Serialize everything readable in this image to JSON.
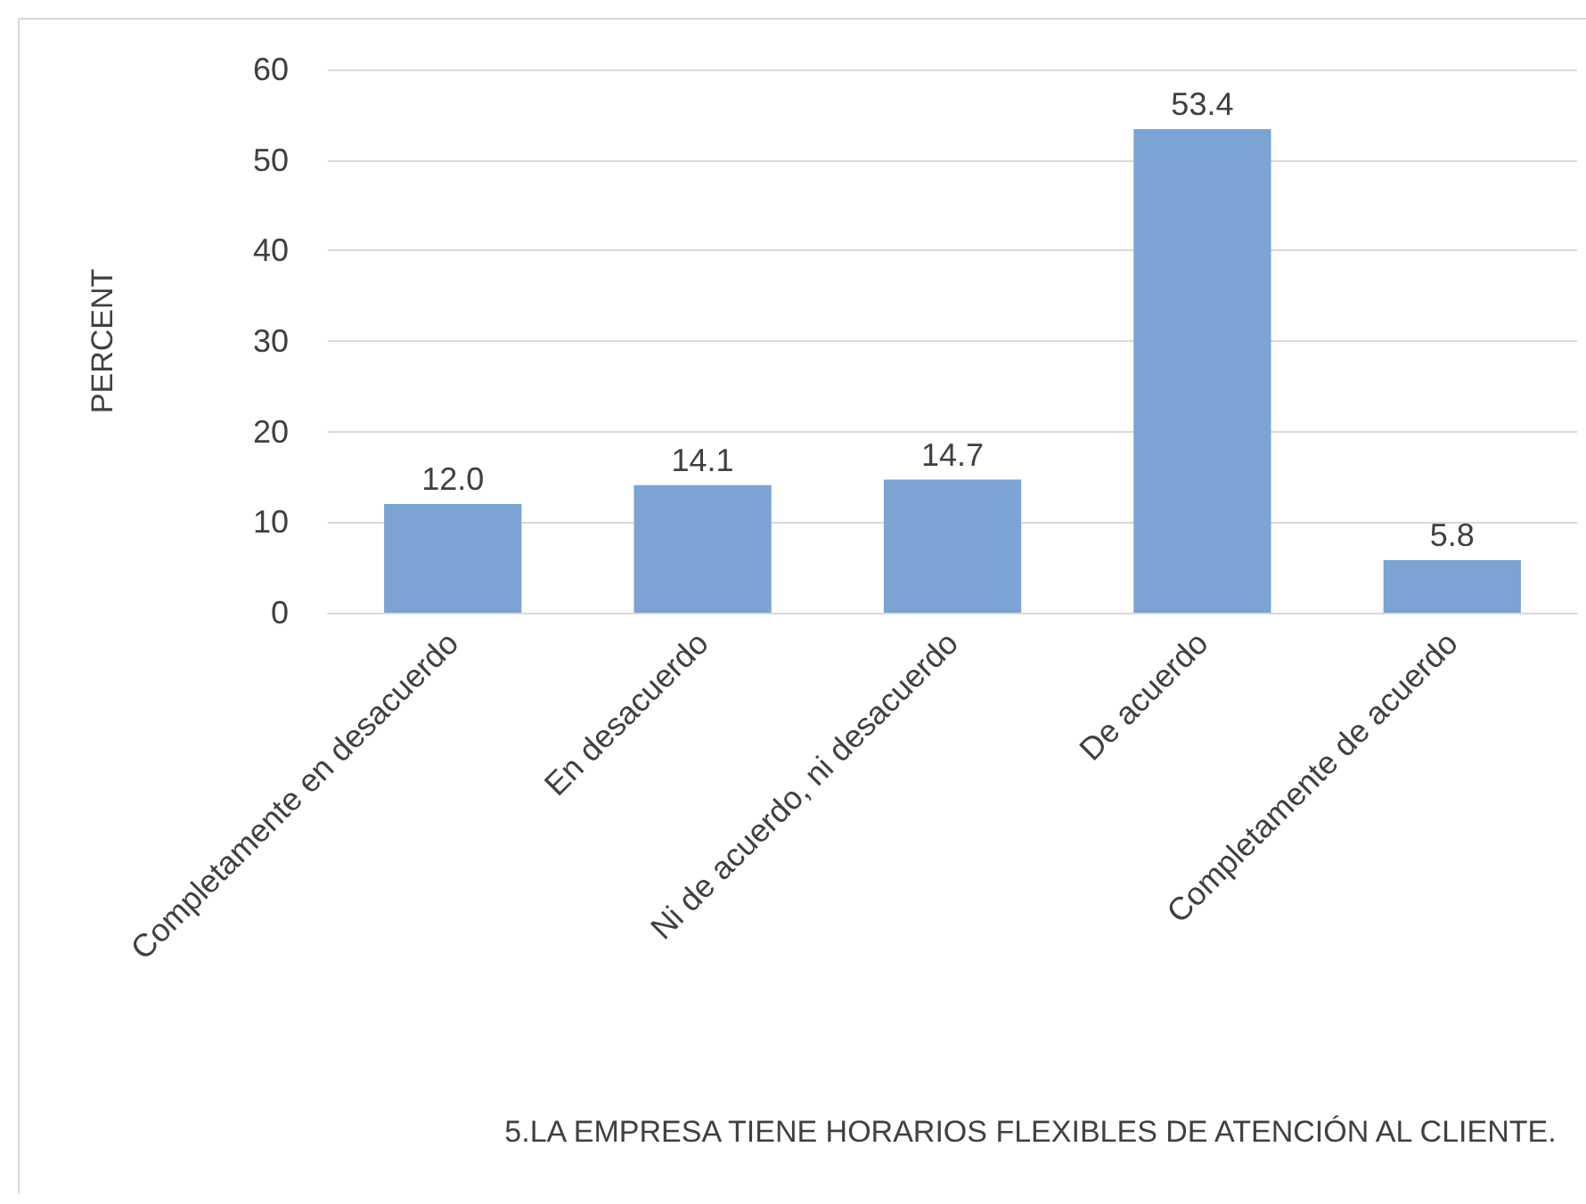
{
  "chart_data": {
    "type": "bar",
    "annotations": [
      "5.LA EMPRESA TIENE HORARIOS FLEXIBLES DE ATENCIÓN AL CLIENTE."
    ],
    "ylabel": "PERCENT",
    "categories": [
      "Completamente en desacuerdo",
      "En desacuerdo",
      "Ni de acuerdo, ni desacuerdo",
      "De acuerdo",
      "Completamente de acuerdo"
    ],
    "values": [
      12.0,
      14.1,
      14.7,
      53.4,
      5.8
    ],
    "value_labels": [
      "12.0",
      "14.1",
      "14.7",
      "53.4",
      "5.8"
    ],
    "color": "#7ba3d3",
    "ylim": [
      0,
      60
    ],
    "yticks": [
      0,
      10,
      20,
      30,
      40,
      50,
      60
    ],
    "grid": "y"
  }
}
